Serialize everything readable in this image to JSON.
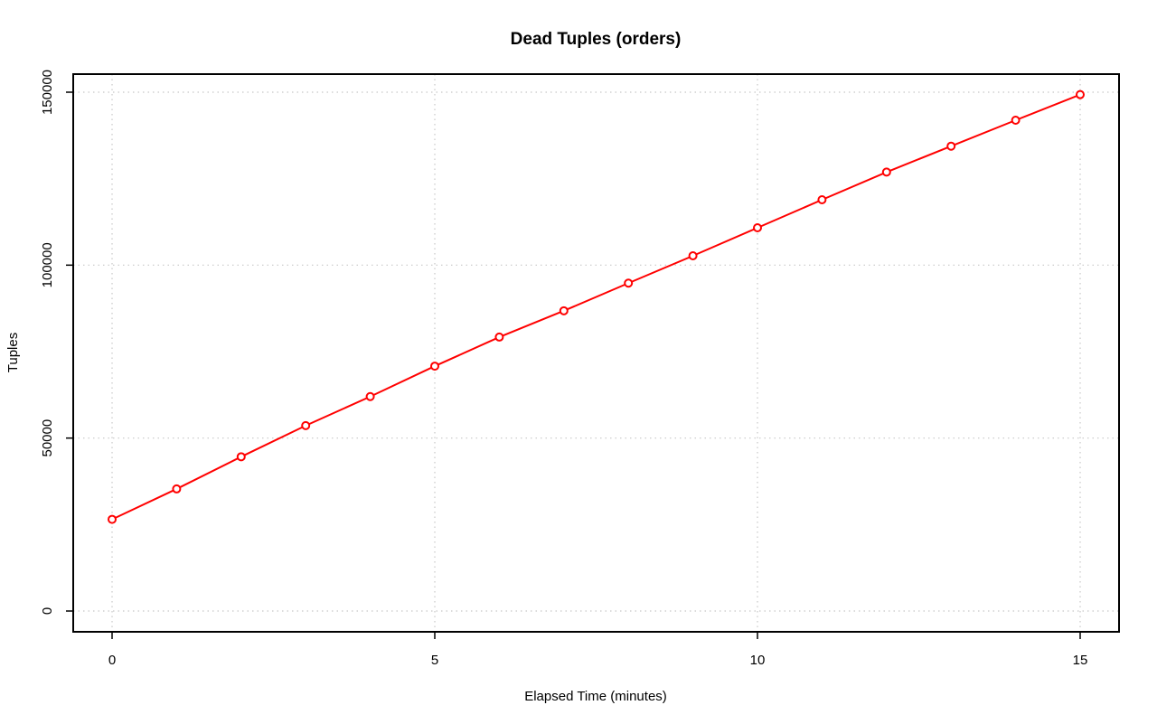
{
  "chart_data": {
    "type": "line",
    "title": "Dead Tuples (orders)",
    "xlabel": "Elapsed Time (minutes)",
    "ylabel": "Tuples",
    "xlim": [
      0,
      15
    ],
    "ylim": [
      0,
      150000
    ],
    "x_ticks": [
      0,
      5,
      10,
      15
    ],
    "y_ticks": [
      0,
      50000,
      100000,
      150000
    ],
    "grid": true,
    "series": [
      {
        "color": "#ff0000",
        "marker": "open-circle",
        "x": [
          0,
          1,
          2,
          3,
          4,
          5,
          6,
          7,
          8,
          9,
          10,
          11,
          12,
          13,
          14,
          15
        ],
        "y": [
          26500,
          35300,
          44600,
          53600,
          62000,
          70800,
          79200,
          86800,
          94800,
          102700,
          110800,
          118900,
          126900,
          134400,
          141900,
          149300
        ]
      }
    ]
  }
}
